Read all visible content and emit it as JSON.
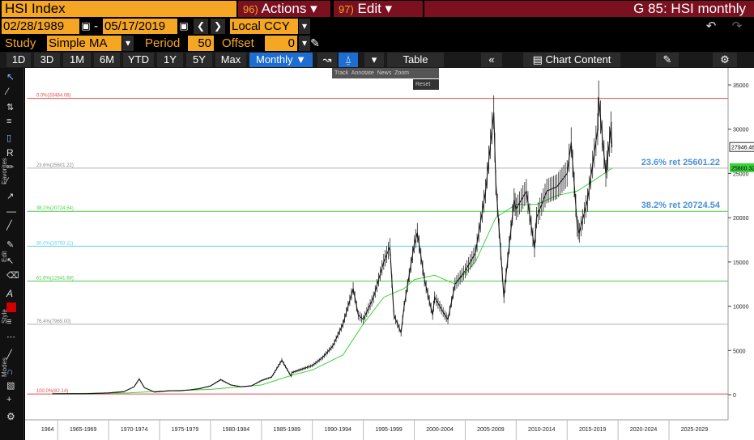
{
  "header": {
    "ticker": "HSI Index",
    "actions": {
      "num": "96)",
      "label": "Actions ▾"
    },
    "edit": {
      "num": "97)",
      "label": "Edit ▾"
    },
    "window_title": "G 85: HSI monthly"
  },
  "range": {
    "start": "02/28/1989",
    "sep": "-",
    "end": "05/17/2019",
    "currency": "Local CCY"
  },
  "study": {
    "label": "Study",
    "value": "Simple MA",
    "period_label": "Period",
    "period": "50",
    "offset_label": "Offset",
    "offset": "0"
  },
  "toolbar": {
    "periods": [
      "1D",
      "3D",
      "1M",
      "6M",
      "YTD",
      "1Y",
      "5Y",
      "Max"
    ],
    "frequency": "Monthly ▼",
    "table_label": "Table",
    "chart_content_label": "Chart Content"
  },
  "overlay": {
    "tools": [
      "Track",
      "Annotate",
      "News",
      "Zoom"
    ],
    "reset": "Reset"
  },
  "sidebar": {
    "favorites": "Favorites",
    "edit": "Edit",
    "style": "Style",
    "modes": "Modes"
  },
  "chart_data": {
    "type": "line",
    "title": "",
    "y_axis_ticks": [
      "35000",
      "30000",
      "25000",
      "20000",
      "15000",
      "10000",
      "5000",
      "0"
    ],
    "ylim": [
      0,
      35000
    ],
    "x_axis_ticks": [
      "1964",
      "1965-1969",
      "1970-1974",
      "1975-1979",
      "1980-1984",
      "1985-1989",
      "1990-1994",
      "1995-1999",
      "2000-2004",
      "2005-2009",
      "2010-2014",
      "2015-2019",
      "2020-2024",
      "2025-2029"
    ],
    "last_price": "27946.46",
    "ma_value": "25600.32",
    "fib_levels": [
      {
        "label": "0.0%(33484.08)",
        "value": 33484.08,
        "color": "#e05050"
      },
      {
        "label": "23.6%(25601.22)",
        "value": 25601.22,
        "color": "#b0b0b0"
      },
      {
        "label": "38.2%(20724.54)",
        "value": 20724.54,
        "color": "#4ecb4e"
      },
      {
        "label": "50.0%(16783.11)",
        "value": 16783.11,
        "color": "#5fd0e8"
      },
      {
        "label": "61.8%(12841.68)",
        "value": 12841.68,
        "color": "#4ecb4e"
      },
      {
        "label": "76.4%(7965.00)",
        "value": 7965.0,
        "color": "#b0b0b0"
      },
      {
        "label": "100.0%(82.14)",
        "value": 82.14,
        "color": "#e05050"
      }
    ],
    "annotations": [
      {
        "text": "23.6% ret 25601.22",
        "value": 25601.22
      },
      {
        "text": "38.2% ret 20724.54",
        "value": 20724.54
      }
    ],
    "price_series": [
      [
        1964.5,
        100
      ],
      [
        1968,
        120
      ],
      [
        1970,
        200
      ],
      [
        1971.5,
        350
      ],
      [
        1972.5,
        900
      ],
      [
        1973,
        1775
      ],
      [
        1973.5,
        800
      ],
      [
        1974.5,
        300
      ],
      [
        1975,
        350
      ],
      [
        1976,
        450
      ],
      [
        1977,
        450
      ],
      [
        1978,
        550
      ],
      [
        1979,
        700
      ],
      [
        1980,
        1000
      ],
      [
        1981,
        1700
      ],
      [
        1982,
        1100
      ],
      [
        1983,
        900
      ],
      [
        1984,
        1000
      ],
      [
        1985,
        1600
      ],
      [
        1986,
        2000
      ],
      [
        1987,
        3900
      ],
      [
        1987.9,
        2100
      ],
      [
        1988,
        2500
      ],
      [
        1989,
        2900
      ],
      [
        1990,
        3300
      ],
      [
        1991,
        4200
      ],
      [
        1992,
        5500
      ],
      [
        1993,
        8000
      ],
      [
        1994,
        12000
      ],
      [
        1994.5,
        9000
      ],
      [
        1995,
        8500
      ],
      [
        1996,
        11000
      ],
      [
        1997,
        15000
      ],
      [
        1997.6,
        16700
      ],
      [
        1998,
        9000
      ],
      [
        1998.7,
        7000
      ],
      [
        1999,
        10000
      ],
      [
        2000,
        17000
      ],
      [
        2000.3,
        18300
      ],
      [
        2001,
        13000
      ],
      [
        2001.8,
        9000
      ],
      [
        2002,
        11000
      ],
      [
        2003,
        9000
      ],
      [
        2003.3,
        8500
      ],
      [
        2004,
        12500
      ],
      [
        2005,
        14000
      ],
      [
        2006,
        16000
      ],
      [
        2007,
        23000
      ],
      [
        2007.8,
        31900
      ],
      [
        2008,
        24000
      ],
      [
        2008.8,
        11000
      ],
      [
        2009,
        13500
      ],
      [
        2009.8,
        22000
      ],
      [
        2010,
        21000
      ],
      [
        2011,
        23000
      ],
      [
        2011.8,
        16500
      ],
      [
        2012,
        20000
      ],
      [
        2013,
        23000
      ],
      [
        2014,
        23500
      ],
      [
        2015,
        25000
      ],
      [
        2015.4,
        28500
      ],
      [
        2016,
        19000
      ],
      [
        2016.2,
        18300
      ],
      [
        2017,
        22000
      ],
      [
        2018,
        30000
      ],
      [
        2018.1,
        33484
      ],
      [
        2018.8,
        25000
      ],
      [
        2019,
        27000
      ],
      [
        2019.3,
        30200
      ],
      [
        2019.4,
        27946
      ]
    ],
    "ma_series": [
      [
        1964.5,
        100
      ],
      [
        1972,
        200
      ],
      [
        1975,
        400
      ],
      [
        1980,
        600
      ],
      [
        1985,
        1100
      ],
      [
        1988,
        2200
      ],
      [
        1990,
        2800
      ],
      [
        1993,
        4500
      ],
      [
        1995,
        8000
      ],
      [
        1997,
        11000
      ],
      [
        1999,
        12000
      ],
      [
        2000,
        13000
      ],
      [
        2002,
        13500
      ],
      [
        2004,
        12500
      ],
      [
        2006,
        15000
      ],
      [
        2008,
        20000
      ],
      [
        2010,
        21500
      ],
      [
        2012,
        21500
      ],
      [
        2014,
        22500
      ],
      [
        2016,
        23000
      ],
      [
        2018,
        24500
      ],
      [
        2019.4,
        25600
      ]
    ]
  }
}
